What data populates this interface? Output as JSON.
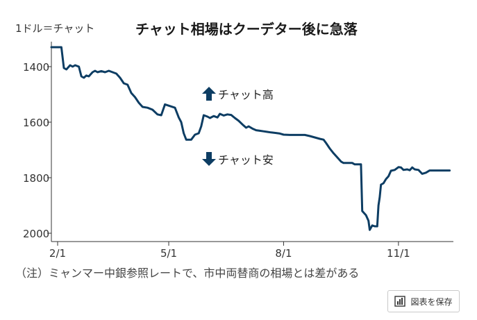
{
  "header": {
    "unit_label": "1ドル＝チャット",
    "title": "チャット相場はクーデター後に急落"
  },
  "annotations": {
    "up_label": "チャット高",
    "down_label": "チャット安"
  },
  "footer": {
    "note": "（注）ミャンマー中銀参照レートで、市中両替商の相場とは差がある"
  },
  "toolbar": {
    "save_label": "図表を保存",
    "save_icon": "bar-chart-icon"
  },
  "colors": {
    "line": "#0d3d63",
    "axis": "#333333",
    "arrow": "#0d3d63"
  },
  "chart_data": {
    "type": "line",
    "x_axis": {
      "type": "date",
      "range": [
        "2021-01-27",
        "2021-12-15"
      ],
      "ticks": [
        {
          "date": "2021-02-01",
          "label": "2/1"
        },
        {
          "date": "2021-05-01",
          "label": "5/1"
        },
        {
          "date": "2021-08-01",
          "label": "8/1"
        },
        {
          "date": "2021-11-01",
          "label": "11/1"
        }
      ]
    },
    "y_axis": {
      "inverted": true,
      "ylim": [
        1310,
        2030
      ],
      "ticks": [
        1400,
        1600,
        1800,
        2000
      ]
    },
    "grid": false,
    "series": [
      {
        "points": [
          [
            "2021-01-27",
            1330
          ],
          [
            "2021-02-04",
            1330
          ],
          [
            "2021-02-06",
            1405
          ],
          [
            "2021-02-08",
            1410
          ],
          [
            "2021-02-11",
            1395
          ],
          [
            "2021-02-13",
            1400
          ],
          [
            "2021-02-15",
            1395
          ],
          [
            "2021-02-18",
            1400
          ],
          [
            "2021-02-20",
            1435
          ],
          [
            "2021-02-22",
            1440
          ],
          [
            "2021-02-24",
            1432
          ],
          [
            "2021-02-26",
            1435
          ],
          [
            "2021-03-01",
            1420
          ],
          [
            "2021-03-03",
            1415
          ],
          [
            "2021-03-05",
            1420
          ],
          [
            "2021-03-08",
            1416
          ],
          [
            "2021-03-11",
            1420
          ],
          [
            "2021-03-14",
            1415
          ],
          [
            "2021-03-17",
            1420
          ],
          [
            "2021-03-20",
            1425
          ],
          [
            "2021-03-23",
            1440
          ],
          [
            "2021-03-26",
            1460
          ],
          [
            "2021-03-29",
            1465
          ],
          [
            "2021-04-01",
            1495
          ],
          [
            "2021-04-04",
            1510
          ],
          [
            "2021-04-07",
            1530
          ],
          [
            "2021-04-10",
            1545
          ],
          [
            "2021-04-14",
            1548
          ],
          [
            "2021-04-18",
            1555
          ],
          [
            "2021-04-22",
            1572
          ],
          [
            "2021-04-25",
            1575
          ],
          [
            "2021-04-28",
            1536
          ],
          [
            "2021-05-02",
            1542
          ],
          [
            "2021-05-06",
            1548
          ],
          [
            "2021-05-09",
            1583
          ],
          [
            "2021-05-11",
            1600
          ],
          [
            "2021-05-13",
            1640
          ],
          [
            "2021-05-15",
            1663
          ],
          [
            "2021-05-19",
            1663
          ],
          [
            "2021-05-22",
            1645
          ],
          [
            "2021-05-25",
            1640
          ],
          [
            "2021-05-27",
            1615
          ],
          [
            "2021-05-29",
            1575
          ],
          [
            "2021-06-01",
            1580
          ],
          [
            "2021-06-03",
            1585
          ],
          [
            "2021-06-06",
            1578
          ],
          [
            "2021-06-09",
            1583
          ],
          [
            "2021-06-11",
            1570
          ],
          [
            "2021-06-14",
            1576
          ],
          [
            "2021-06-17",
            1572
          ],
          [
            "2021-06-20",
            1574
          ],
          [
            "2021-06-23",
            1585
          ],
          [
            "2021-06-26",
            1595
          ],
          [
            "2021-06-29",
            1608
          ],
          [
            "2021-07-02",
            1620
          ],
          [
            "2021-07-04",
            1615
          ],
          [
            "2021-07-07",
            1623
          ],
          [
            "2021-07-10",
            1629
          ],
          [
            "2021-07-13",
            1631
          ],
          [
            "2021-07-16",
            1633
          ],
          [
            "2021-07-19",
            1635
          ],
          [
            "2021-07-22",
            1637
          ],
          [
            "2021-07-26",
            1639
          ],
          [
            "2021-07-29",
            1641
          ],
          [
            "2021-08-01",
            1645
          ],
          [
            "2021-08-06",
            1646
          ],
          [
            "2021-08-12",
            1646
          ],
          [
            "2021-08-18",
            1646
          ],
          [
            "2021-08-22",
            1650
          ],
          [
            "2021-08-26",
            1655
          ],
          [
            "2021-08-30",
            1660
          ],
          [
            "2021-09-02",
            1663
          ],
          [
            "2021-09-04",
            1675
          ],
          [
            "2021-09-07",
            1695
          ],
          [
            "2021-09-10",
            1712
          ],
          [
            "2021-09-13",
            1727
          ],
          [
            "2021-09-16",
            1742
          ],
          [
            "2021-09-18",
            1747
          ],
          [
            "2021-09-22",
            1747
          ],
          [
            "2021-09-25",
            1747
          ],
          [
            "2021-09-27",
            1752
          ],
          [
            "2021-09-30",
            1752
          ],
          [
            "2021-10-02",
            1752
          ],
          [
            "2021-10-03",
            1920
          ],
          [
            "2021-10-06",
            1935
          ],
          [
            "2021-10-08",
            1955
          ],
          [
            "2021-10-09",
            1988
          ],
          [
            "2021-10-11",
            1972
          ],
          [
            "2021-10-13",
            1975
          ],
          [
            "2021-10-15",
            1975
          ],
          [
            "2021-10-16",
            1900
          ],
          [
            "2021-10-17",
            1870
          ],
          [
            "2021-10-18",
            1825
          ],
          [
            "2021-10-20",
            1820
          ],
          [
            "2021-10-22",
            1805
          ],
          [
            "2021-10-24",
            1795
          ],
          [
            "2021-10-26",
            1775
          ],
          [
            "2021-10-29",
            1772
          ],
          [
            "2021-11-01",
            1762
          ],
          [
            "2021-11-03",
            1763
          ],
          [
            "2021-11-05",
            1772
          ],
          [
            "2021-11-08",
            1770
          ],
          [
            "2021-11-10",
            1773
          ],
          [
            "2021-11-12",
            1763
          ],
          [
            "2021-11-14",
            1770
          ],
          [
            "2021-11-17",
            1772
          ],
          [
            "2021-11-20",
            1786
          ],
          [
            "2021-11-23",
            1782
          ],
          [
            "2021-11-26",
            1774
          ],
          [
            "2021-12-01",
            1774
          ],
          [
            "2021-12-06",
            1774
          ],
          [
            "2021-12-12",
            1774
          ]
        ]
      }
    ]
  }
}
